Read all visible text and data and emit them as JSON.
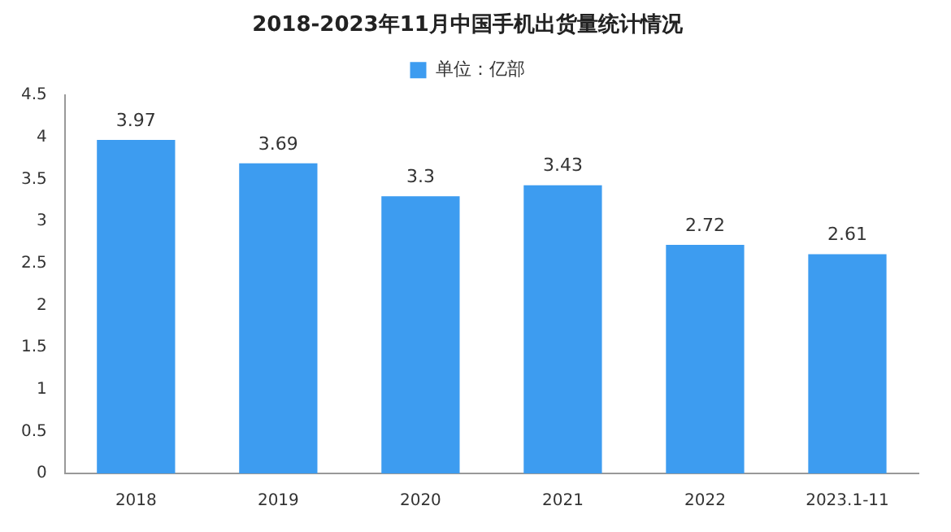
{
  "chart_data": {
    "type": "bar",
    "title": "2018-2023年11月中国手机出货量统计情况",
    "categories": [
      "2018",
      "2019",
      "2020",
      "2021",
      "2022",
      "2023.1-11"
    ],
    "series": [
      {
        "name": "单位：亿部",
        "color": "#3d9cf0",
        "values": [
          3.97,
          3.69,
          3.3,
          3.43,
          2.72,
          2.61
        ]
      }
    ],
    "ylim": [
      0,
      4.5
    ],
    "yticks": [
      0,
      0.5,
      1,
      1.5,
      2,
      2.5,
      3,
      3.5,
      4,
      4.5
    ],
    "grid": false,
    "legend": "top",
    "data_labels": true
  }
}
